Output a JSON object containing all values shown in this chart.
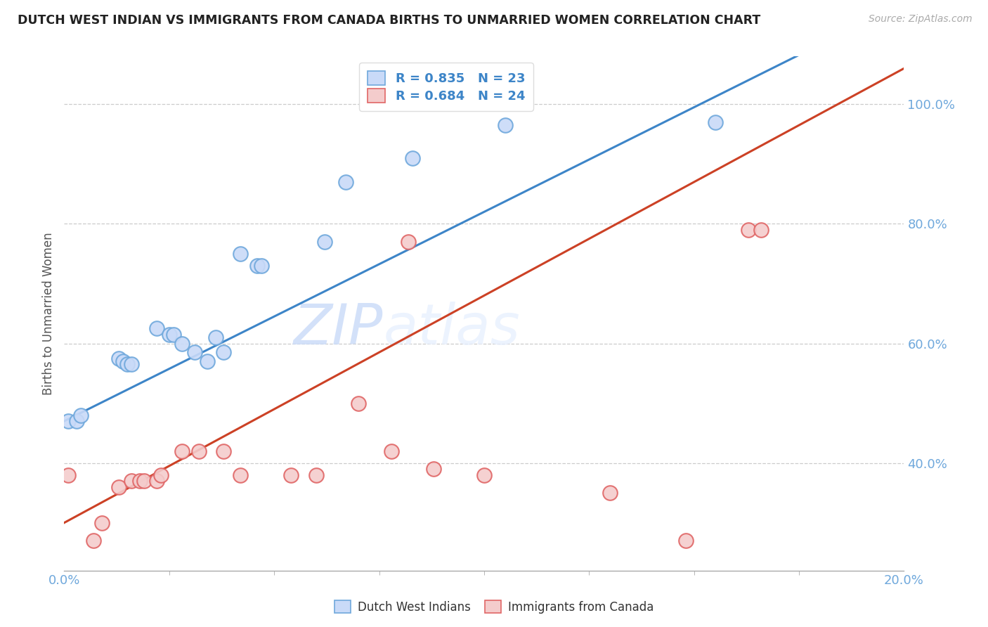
{
  "title": "DUTCH WEST INDIAN VS IMMIGRANTS FROM CANADA BIRTHS TO UNMARRIED WOMEN CORRELATION CHART",
  "source": "Source: ZipAtlas.com",
  "ylabel": "Births to Unmarried Women",
  "R1": 0.835,
  "N1": 23,
  "R2": 0.684,
  "N2": 24,
  "color_blue_fill": "#c9daf8",
  "color_blue_edge": "#6fa8dc",
  "color_pink_fill": "#f4cccc",
  "color_pink_edge": "#e06666",
  "color_blue_line": "#3d85c8",
  "color_pink_line": "#cc4125",
  "color_axis_text": "#6fa8dc",
  "color_title": "#222222",
  "legend_label1": "Dutch West Indians",
  "legend_label2": "Immigrants from Canada",
  "watermark_zip": "ZIP",
  "watermark_atlas": "atlas",
  "blue_x": [
    0.001,
    0.003,
    0.004,
    0.013,
    0.014,
    0.015,
    0.016,
    0.022,
    0.025,
    0.026,
    0.028,
    0.031,
    0.034,
    0.036,
    0.038,
    0.042,
    0.046,
    0.047,
    0.062,
    0.067,
    0.083,
    0.105,
    0.155
  ],
  "blue_y": [
    0.47,
    0.47,
    0.48,
    0.575,
    0.57,
    0.565,
    0.565,
    0.625,
    0.615,
    0.615,
    0.6,
    0.585,
    0.57,
    0.61,
    0.585,
    0.75,
    0.73,
    0.73,
    0.77,
    0.87,
    0.91,
    0.965,
    0.97
  ],
  "pink_x": [
    0.001,
    0.007,
    0.009,
    0.013,
    0.016,
    0.018,
    0.019,
    0.022,
    0.023,
    0.028,
    0.032,
    0.038,
    0.042,
    0.054,
    0.06,
    0.07,
    0.078,
    0.082,
    0.088,
    0.1,
    0.13,
    0.148,
    0.163,
    0.166
  ],
  "pink_y": [
    0.38,
    0.27,
    0.3,
    0.36,
    0.37,
    0.37,
    0.37,
    0.37,
    0.38,
    0.42,
    0.42,
    0.42,
    0.38,
    0.38,
    0.38,
    0.5,
    0.42,
    0.77,
    0.39,
    0.38,
    0.35,
    0.27,
    0.79,
    0.79
  ],
  "blue_line_slope": 3.5,
  "blue_line_intercept": 0.47,
  "pink_line_slope": 3.8,
  "pink_line_intercept": 0.3,
  "xlim": [
    0.0,
    0.2
  ],
  "ylim": [
    0.22,
    1.08
  ],
  "yticks": [
    0.4,
    0.6,
    0.8,
    1.0
  ],
  "ytick_labels": [
    "40.0%",
    "60.0%",
    "80.0%",
    "100.0%"
  ],
  "xtick_left": "0.0%",
  "xtick_right": "20.0%"
}
